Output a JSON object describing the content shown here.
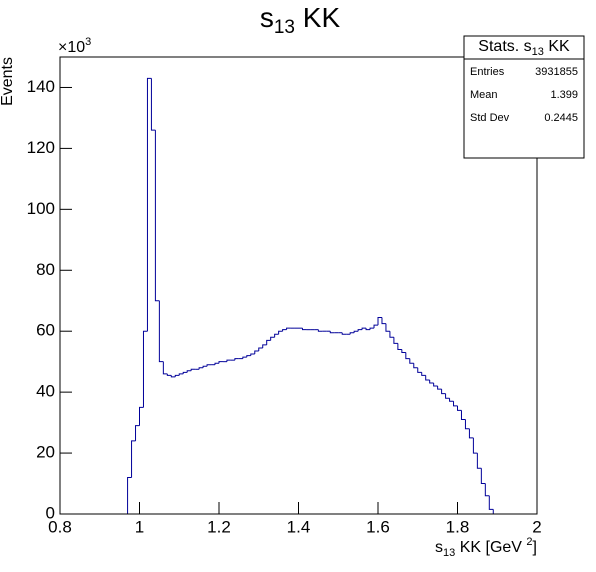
{
  "chart_data": {
    "type": "histogram",
    "title": {
      "text": "s",
      "subscript": "13",
      "suffix": " KK"
    },
    "xlabel": {
      "text": "s",
      "subscript": "13",
      "middle": " KK [GeV ",
      "superscript": "2",
      "suffix": "]"
    },
    "ylabel": "Events",
    "multiplier": {
      "text": "×10",
      "superscript": "3"
    },
    "color": "#000099",
    "xlim": [
      0.8,
      2
    ],
    "xticks": [
      0.8,
      1,
      1.2,
      1.4,
      1.6,
      1.8,
      2
    ],
    "ylim": [
      0,
      150
    ],
    "yticks": [
      0,
      20,
      40,
      60,
      80,
      100,
      120,
      140
    ],
    "bins": [
      0.8,
      0.81,
      0.82,
      0.83,
      0.84,
      0.85,
      0.86,
      0.87,
      0.88,
      0.89,
      0.9,
      0.91,
      0.92,
      0.93,
      0.94,
      0.95,
      0.96,
      0.97,
      0.98,
      0.99,
      1,
      1.01,
      1.02,
      1.03,
      1.04,
      1.05,
      1.06,
      1.07,
      1.08,
      1.09,
      1.1,
      1.11,
      1.12,
      1.13,
      1.14,
      1.15,
      1.16,
      1.17,
      1.18,
      1.19,
      1.2,
      1.21,
      1.22,
      1.23,
      1.24,
      1.25,
      1.26,
      1.27,
      1.28,
      1.29,
      1.3,
      1.31,
      1.32,
      1.33,
      1.34,
      1.35,
      1.36,
      1.37,
      1.38,
      1.39,
      1.4,
      1.41,
      1.42,
      1.43,
      1.44,
      1.45,
      1.46,
      1.47,
      1.48,
      1.49,
      1.5,
      1.51,
      1.52,
      1.53,
      1.54,
      1.55,
      1.56,
      1.57,
      1.58,
      1.59,
      1.6,
      1.61,
      1.62,
      1.63,
      1.64,
      1.65,
      1.66,
      1.67,
      1.68,
      1.69,
      1.7,
      1.71,
      1.72,
      1.73,
      1.74,
      1.75,
      1.76,
      1.77,
      1.78,
      1.79,
      1.8,
      1.81,
      1.82,
      1.83,
      1.84,
      1.85,
      1.86,
      1.87,
      1.88,
      1.89,
      1.9,
      1.91,
      1.92,
      1.93,
      1.94,
      1.95,
      1.96,
      1.97,
      1.98,
      1.99,
      2
    ],
    "values": [
      0,
      0,
      0,
      0,
      0,
      0,
      0,
      0,
      0,
      0,
      0,
      0,
      0,
      0,
      0,
      0,
      0,
      12,
      24,
      29,
      35,
      60,
      143,
      126,
      70,
      50,
      46,
      45.5,
      45,
      45.5,
      46,
      46.5,
      47,
      47.5,
      47.5,
      48,
      48.5,
      49,
      49,
      49.5,
      50,
      50,
      50.5,
      50.5,
      51,
      51,
      51.5,
      52,
      52.5,
      53.5,
      54.5,
      55.5,
      57,
      58,
      59,
      60,
      60.5,
      61,
      61,
      61,
      61,
      60.5,
      60.5,
      60.5,
      60.5,
      60,
      60,
      60,
      59.5,
      59.5,
      59.5,
      59,
      59,
      59.5,
      60,
      60.5,
      61,
      60.5,
      61,
      62,
      64.5,
      62.5,
      60,
      58,
      56,
      54,
      53,
      51,
      49.5,
      48,
      46.5,
      45.5,
      44,
      43,
      42,
      41,
      39.5,
      38,
      37,
      35.5,
      34,
      31,
      28,
      25,
      20,
      15,
      10,
      6,
      1.5,
      0,
      0,
      0,
      0,
      0,
      0,
      0,
      0,
      0,
      0,
      0
    ],
    "stats": {
      "title": {
        "text": "Stats. s",
        "subscript": "13",
        "suffix": " KK"
      },
      "rows": [
        [
          "Entries",
          "3931855"
        ],
        [
          "Mean",
          "1.399"
        ],
        [
          "Std Dev",
          "0.2445"
        ]
      ]
    }
  }
}
